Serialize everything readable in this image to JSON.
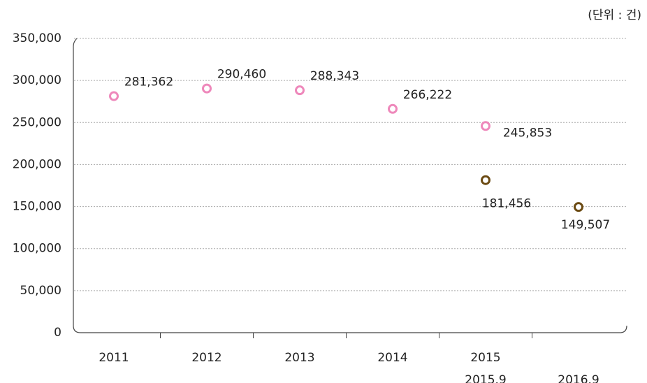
{
  "chart_data": {
    "type": "line",
    "unit_note": "(단위 : 건)",
    "categories": [
      "2011",
      "2012",
      "2013",
      "2014",
      "2015",
      null
    ],
    "sub_categories": [
      null,
      null,
      null,
      null,
      "2015.9",
      "2016.9"
    ],
    "series": [
      {
        "color": "#ee88bb",
        "dashed": false,
        "values": [
          281362,
          290460,
          288343,
          266222,
          245853,
          null
        ],
        "value_labels": [
          "281,362",
          "290,460",
          "288,343",
          "266,222",
          "245,853",
          null
        ]
      },
      {
        "color": "#6b4a12",
        "dashed": true,
        "values": [
          null,
          null,
          null,
          null,
          181456,
          149507
        ],
        "value_labels": [
          null,
          null,
          null,
          null,
          "181,456",
          "149,507"
        ]
      }
    ],
    "ylim": [
      0,
      350000
    ],
    "yticks": [
      0,
      {
        "value": 50000,
        "label": "50,000"
      },
      {
        "value": 100000,
        "label": "100,000"
      },
      {
        "value": 150000,
        "label": "150,000"
      },
      {
        "value": 200000,
        "label": "200,000"
      },
      {
        "value": 250000,
        "label": "250,000"
      },
      {
        "value": 300000,
        "label": "300,000"
      },
      {
        "value": 350000,
        "label": "350,000"
      }
    ],
    "grid": true
  }
}
